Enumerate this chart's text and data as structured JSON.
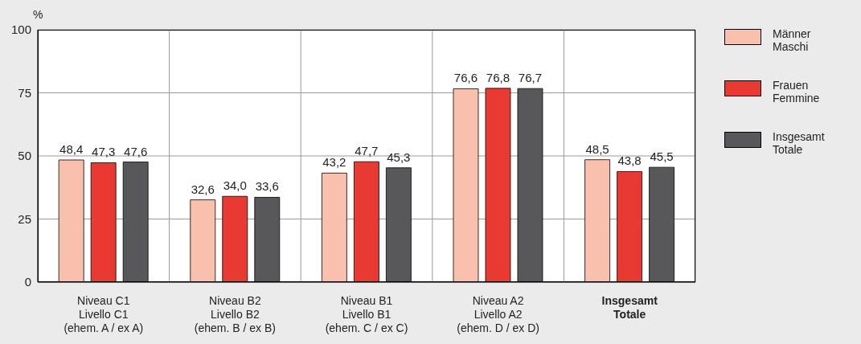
{
  "chart_data": {
    "type": "bar",
    "ylabel": "%",
    "categories": [
      "Niveau C1\nLivello C1\n(ehem. A / ex A)",
      "Niveau B2\nLivello B2\n(ehem. B / ex B)",
      "Niveau B1\nLivello B1\n(ehem. C / ex C)",
      "Niveau A2\nLivello A2\n(ehem. D / ex D)",
      "Insgesamt\nTotale"
    ],
    "series": [
      {
        "name": "Männer\nMaschi",
        "color": "#f9c0ad",
        "values": [
          48.4,
          32.6,
          43.2,
          76.6,
          48.5
        ],
        "value_labels": [
          "48,4",
          "32,6",
          "43,2",
          "76,6",
          "48,5"
        ]
      },
      {
        "name": "Frauen\nFemmine",
        "color": "#e83a33",
        "values": [
          47.3,
          34.0,
          47.7,
          76.8,
          43.8
        ],
        "value_labels": [
          "47,3",
          "34,0",
          "47,7",
          "76,8",
          "43,8"
        ]
      },
      {
        "name": "Insgesamt\nTotale",
        "color": "#58585a",
        "values": [
          47.6,
          33.6,
          45.3,
          76.7,
          45.5
        ],
        "value_labels": [
          "47,6",
          "33,6",
          "45,3",
          "76,7",
          "45,5"
        ]
      }
    ],
    "ylim": [
      0,
      100
    ],
    "yticks": [
      0,
      25,
      50,
      75,
      100
    ],
    "grid": true,
    "legend": "right"
  }
}
